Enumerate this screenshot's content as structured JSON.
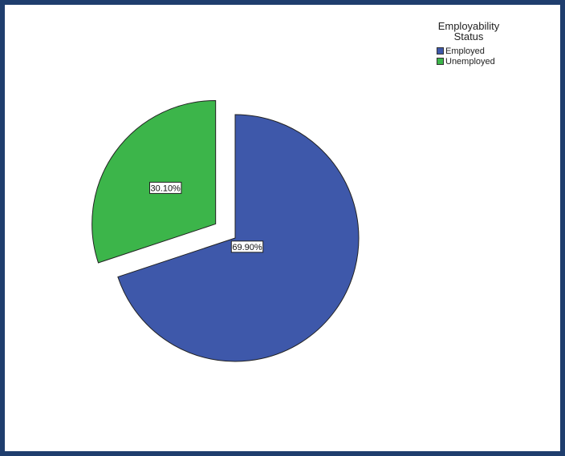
{
  "chart_data": {
    "type": "pie",
    "legend_title": "Employability\nStatus",
    "legend_placement": "top-right",
    "categories": [
      "Employed",
      "Unemployed"
    ],
    "values": [
      69.9,
      30.1
    ],
    "data_labels": [
      "69.90%",
      "30.10%"
    ],
    "colors": [
      "#3e58aa",
      "#3cb54a"
    ],
    "exploded": [
      "Unemployed"
    ]
  },
  "frame": {
    "border_color": "#1f3e6e"
  }
}
